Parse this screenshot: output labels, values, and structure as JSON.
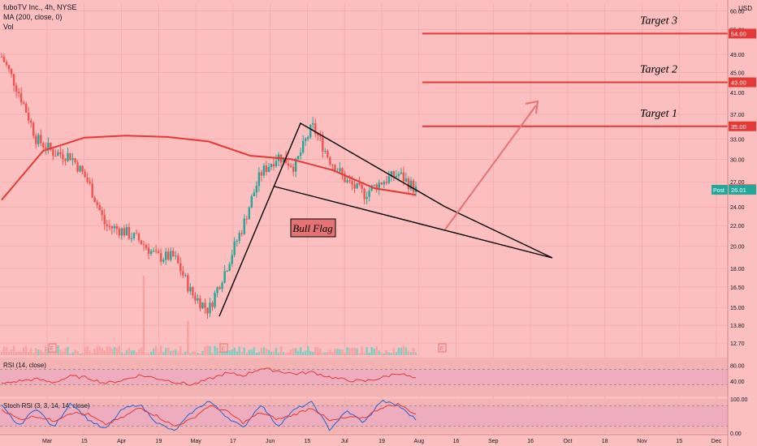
{
  "legend": {
    "symbol": "fuboTV Inc., 4h, NYSE",
    "ma": "MA (200, close, 0)",
    "vol": "Vol"
  },
  "currency": "USD",
  "chart_data": [
    {
      "type": "line",
      "title": "",
      "price_scale": "log",
      "ylim": [
        12.0,
        62.0
      ],
      "y_ticks": [
        "60.00",
        "55.00",
        "49.00",
        "45.00",
        "41.00",
        "37.00",
        "33.00",
        "30.00",
        "27.00",
        "24.00",
        "22.00",
        "20.00",
        "18.00",
        "16.50",
        "15.00",
        "13.80",
        "12.70"
      ],
      "x_ticks": [
        "Mar",
        "15",
        "Apr",
        "19",
        "May",
        "17",
        "Jun",
        "15",
        "Jul",
        "19",
        "Aug",
        "16",
        "Sep",
        "16",
        "Oct",
        "18",
        "Nov",
        "15",
        "Dec"
      ],
      "series": [
        {
          "name": "fuboTV Inc., 4h, NYSE",
          "x": [
            "Feb 23",
            "Mar 1",
            "Mar 8",
            "Mar 15",
            "Mar 22",
            "Mar 29",
            "Apr 5",
            "Apr 12",
            "Apr 19",
            "Apr 26",
            "May 3",
            "May 10",
            "May 14",
            "May 21",
            "May 28",
            "Jun 4",
            "Jun 11",
            "Jun 18",
            "Jun 25",
            "Jul 2",
            "Jul 9",
            "Jul 16",
            "Jul 23",
            "Jul 27",
            "Jul 30"
          ],
          "values": [
            48.5,
            41.0,
            33.0,
            31.0,
            30.5,
            27.0,
            22.0,
            21.5,
            20.5,
            19.0,
            19.0,
            16.0,
            14.8,
            18.0,
            22.0,
            28.0,
            30.5,
            29.0,
            35.0,
            30.0,
            27.0,
            25.5,
            27.0,
            28.0,
            26.0
          ]
        },
        {
          "name": "MA (200, close, 0)",
          "x": [
            "Feb 23",
            "Mar 15",
            "Apr 5",
            "Apr 19",
            "May 3",
            "May 17",
            "Jun 1",
            "Jun 15",
            "Jul 1",
            "Jul 15",
            "Jul 30"
          ],
          "values": [
            24.8,
            31.2,
            33.2,
            33.5,
            33.3,
            32.6,
            30.5,
            30.0,
            28.5,
            26.2,
            25.4
          ]
        }
      ],
      "price_labels": [
        {
          "value": "54.00",
          "color": "#e53935"
        },
        {
          "value": "43.00",
          "color": "#e53935"
        },
        {
          "value": "35.00",
          "color": "#e53935"
        },
        {
          "value": "26.07",
          "color": "#e53935"
        },
        {
          "value": "26.01",
          "color": "#26a69a",
          "prefix": "Post"
        }
      ],
      "annotations": [
        {
          "text": "Target 3",
          "level": 54.0
        },
        {
          "text": "Target 2",
          "level": 43.0
        },
        {
          "text": "Target 1",
          "level": 35.0
        },
        {
          "text": "Bull Flag"
        }
      ],
      "event_markers": [
        "E",
        "E",
        "E"
      ]
    },
    {
      "type": "line",
      "title": "RSI (14, close)",
      "ylim": [
        0,
        100
      ],
      "y_ticks": [
        "80.00",
        "40.00"
      ],
      "bands": [
        30,
        70
      ],
      "series": [
        {
          "name": "RSI (14, close)",
          "values": [
            32,
            40,
            45,
            36,
            52,
            48,
            34,
            42,
            55,
            47,
            38,
            30,
            44,
            60,
            54,
            72,
            66,
            58,
            63,
            50,
            42,
            39,
            48,
            61,
            45
          ]
        }
      ]
    },
    {
      "type": "line",
      "title": "Stoch RSI (3, 3, 14, 14, close)",
      "ylim": [
        0,
        100
      ],
      "y_ticks": [
        "100.00",
        "0.00"
      ],
      "bands": [
        20,
        80
      ],
      "series": [
        {
          "name": "K",
          "values": [
            80,
            20,
            75,
            15,
            90,
            40,
            10,
            70,
            85,
            30,
            5,
            60,
            95,
            50,
            15,
            85,
            20,
            70,
            90,
            10,
            65,
            30,
            95,
            80,
            40
          ]
        },
        {
          "name": "D",
          "values": [
            70,
            40,
            50,
            35,
            60,
            55,
            25,
            45,
            75,
            50,
            20,
            40,
            80,
            65,
            30,
            60,
            40,
            55,
            75,
            35,
            45,
            45,
            75,
            85,
            55
          ]
        }
      ]
    }
  ]
}
